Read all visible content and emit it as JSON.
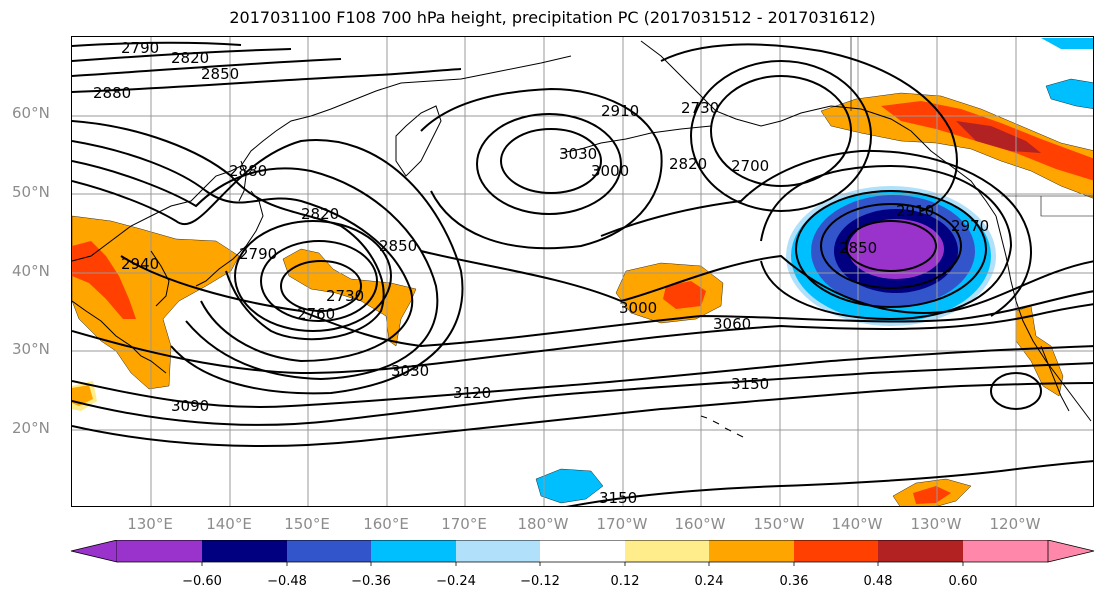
{
  "title": "2017031100 F108 700 hPa height, precipitation PC (2017031512 - 2017031612)",
  "lat_labels": [
    "60°N",
    "50°N",
    "40°N",
    "30°N",
    "20°N"
  ],
  "lon_labels": [
    "130°E",
    "140°E",
    "150°E",
    "160°E",
    "170°E",
    "180°W",
    "170°W",
    "160°W",
    "150°W",
    "140°W",
    "130°W",
    "120°W"
  ],
  "colorbar": {
    "colors": [
      "#9933cc",
      "#000080",
      "#3355cc",
      "#00bfff",
      "#b0e0fa",
      "#ffffff",
      "#ffec8b",
      "#ffa500",
      "#ff4000",
      "#b22222",
      "#ff88aa"
    ],
    "tick_labels": [
      "−0.60",
      "−0.48",
      "−0.36",
      "−0.24",
      "−0.12",
      "0.12",
      "0.24",
      "0.36",
      "0.48",
      "0.60"
    ]
  },
  "contour_labels": [
    "2790",
    "2820",
    "2850",
    "2880",
    "2880",
    "2820",
    "2790",
    "2850",
    "2760",
    "2730",
    "3030",
    "3090",
    "3120",
    "3150",
    "3060",
    "3000",
    "3000",
    "3030",
    "2910",
    "2730",
    "2820",
    "2700",
    "2850",
    "2910",
    "2970",
    "2940",
    "3150"
  ],
  "shading_colors": {
    "orange": "#ffa500",
    "red_orange": "#ff4000",
    "dark_red": "#b22222",
    "yellow": "#ffec8b",
    "sky": "#00bfff",
    "light_blue": "#b0e0fa",
    "royal": "#3355cc",
    "navy": "#000080",
    "purple": "#9933cc"
  }
}
